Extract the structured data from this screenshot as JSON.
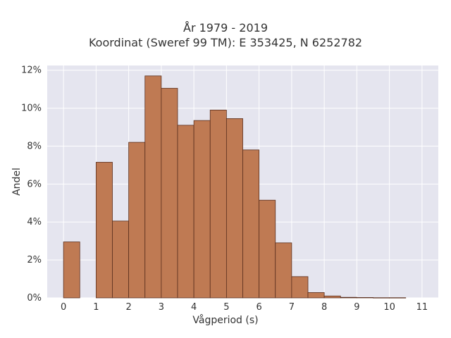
{
  "chart_data": {
    "type": "bar",
    "title_lines": [
      "År 1979 - 2019",
      "Koordinat (Sweref 99 TM): E 353425, N 6252782"
    ],
    "xlabel": "Vågperiod (s)",
    "ylabel": "Andel",
    "x_bin_width": 0.5,
    "x_bin_starts": [
      0,
      0.5,
      1,
      1.5,
      2,
      2.5,
      3,
      3.5,
      4,
      4.5,
      5,
      5.5,
      6,
      6.5,
      7,
      7.5,
      8,
      8.5,
      9,
      9.5,
      10
    ],
    "values": [
      2.95,
      0,
      7.15,
      4.05,
      8.2,
      11.7,
      11.05,
      9.1,
      9.35,
      9.9,
      9.45,
      7.8,
      5.15,
      2.9,
      1.12,
      0.28,
      0.1,
      0.03,
      0.02,
      0.01,
      0.01
    ],
    "xlim": [
      -0.5,
      11.5
    ],
    "ylim": [
      0,
      12.25
    ],
    "x_ticks": [
      0,
      1,
      2,
      3,
      4,
      5,
      6,
      7,
      8,
      9,
      10,
      11
    ],
    "x_tick_labels": [
      "0",
      "1",
      "2",
      "3",
      "4",
      "5",
      "6",
      "7",
      "8",
      "9",
      "10",
      "11"
    ],
    "y_ticks": [
      0,
      2,
      4,
      6,
      8,
      10,
      12
    ],
    "y_tick_labels": [
      "0%",
      "2%",
      "4%",
      "6%",
      "8%",
      "10%",
      "12%"
    ],
    "grid": true,
    "colors": {
      "bar_fill": "#bf7a53",
      "bar_edge": "#5a2f1e",
      "plot_bg": "#e5e5ef",
      "grid": "#ffffff"
    }
  }
}
